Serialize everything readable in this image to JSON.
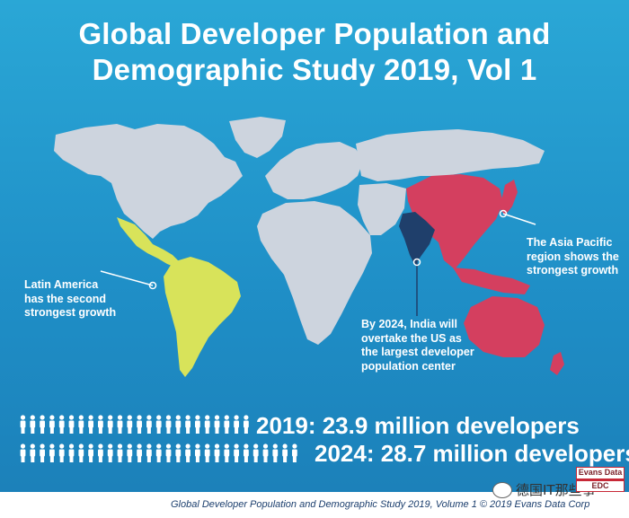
{
  "title": {
    "line1": "Global Developer Population and",
    "line2": "Demographic Study 2019, Vol 1"
  },
  "callouts": {
    "latin_america": [
      "Latin America",
      "has the second",
      "strongest growth"
    ],
    "asia_pacific": [
      "The Asia Pacific",
      "region shows the",
      "strongest growth"
    ],
    "india": [
      "By 2024, India will",
      "overtake the US as",
      "the largest developer",
      "population center"
    ]
  },
  "stats": {
    "year_2019": "2019: 23.9 million developers",
    "year_2024": "2024: 28.7 million developers",
    "icon_counts": {
      "row_2019": 24,
      "row_2024": 29
    }
  },
  "footer": {
    "text": "Global Developer Population and Demographic Study 2019, Volume 1 © 2019 Evans Data Corp"
  },
  "watermark": {
    "text": "德国IT那些事"
  },
  "logo": {
    "line1": "Evans Data",
    "line2": "EDC"
  },
  "colors": {
    "background": "#2196cf",
    "land": "#cdd4de",
    "latin_america": "#d8e35a",
    "asia_pacific": "#d43f5f",
    "india": "#1f3f6b",
    "text": "#ffffff"
  },
  "icons": {
    "person": "person-icon",
    "wechat": "wechat-icon"
  }
}
